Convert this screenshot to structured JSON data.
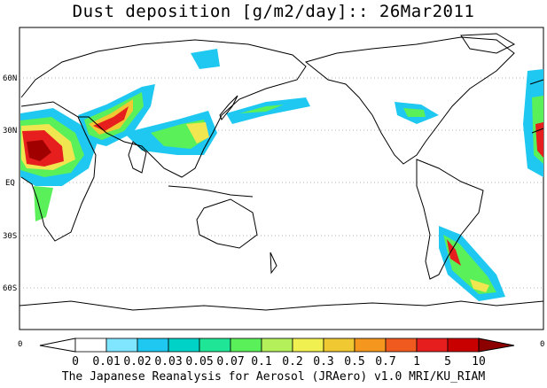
{
  "title": "Dust deposition [g/m2/day]:: 26Mar2011",
  "credit": "The Japanese Reanalysis for Aerosol (JRAero) v1.0 MRI/KU_RIAM",
  "latitude_labels": [
    "60N",
    "30N",
    "EQ",
    "30S",
    "60S"
  ],
  "colorbar": {
    "edge_left_value": "0",
    "edge_right_value": "0",
    "tick_labels": [
      "0",
      "0.01",
      "0.02",
      "0.03",
      "0.05",
      "0.07",
      "0.1",
      "0.2",
      "0.3",
      "0.5",
      "0.7",
      "1",
      "5",
      "10"
    ],
    "colors": [
      "#ffffff",
      "#ffffff",
      "#80e6ff",
      "#1ec8f0",
      "#00d2c8",
      "#1ee696",
      "#5af05a",
      "#b4f05a",
      "#f0f050",
      "#f0c832",
      "#f5961e",
      "#f05a1e",
      "#e61e1e",
      "#c80000",
      "#8c0000"
    ]
  },
  "colors": {
    "coastline": "#000000",
    "grid": "#888888",
    "dust_low": "#1ec8f0",
    "dust_mid": "#5af05a",
    "dust_high": "#e61e1e"
  }
}
